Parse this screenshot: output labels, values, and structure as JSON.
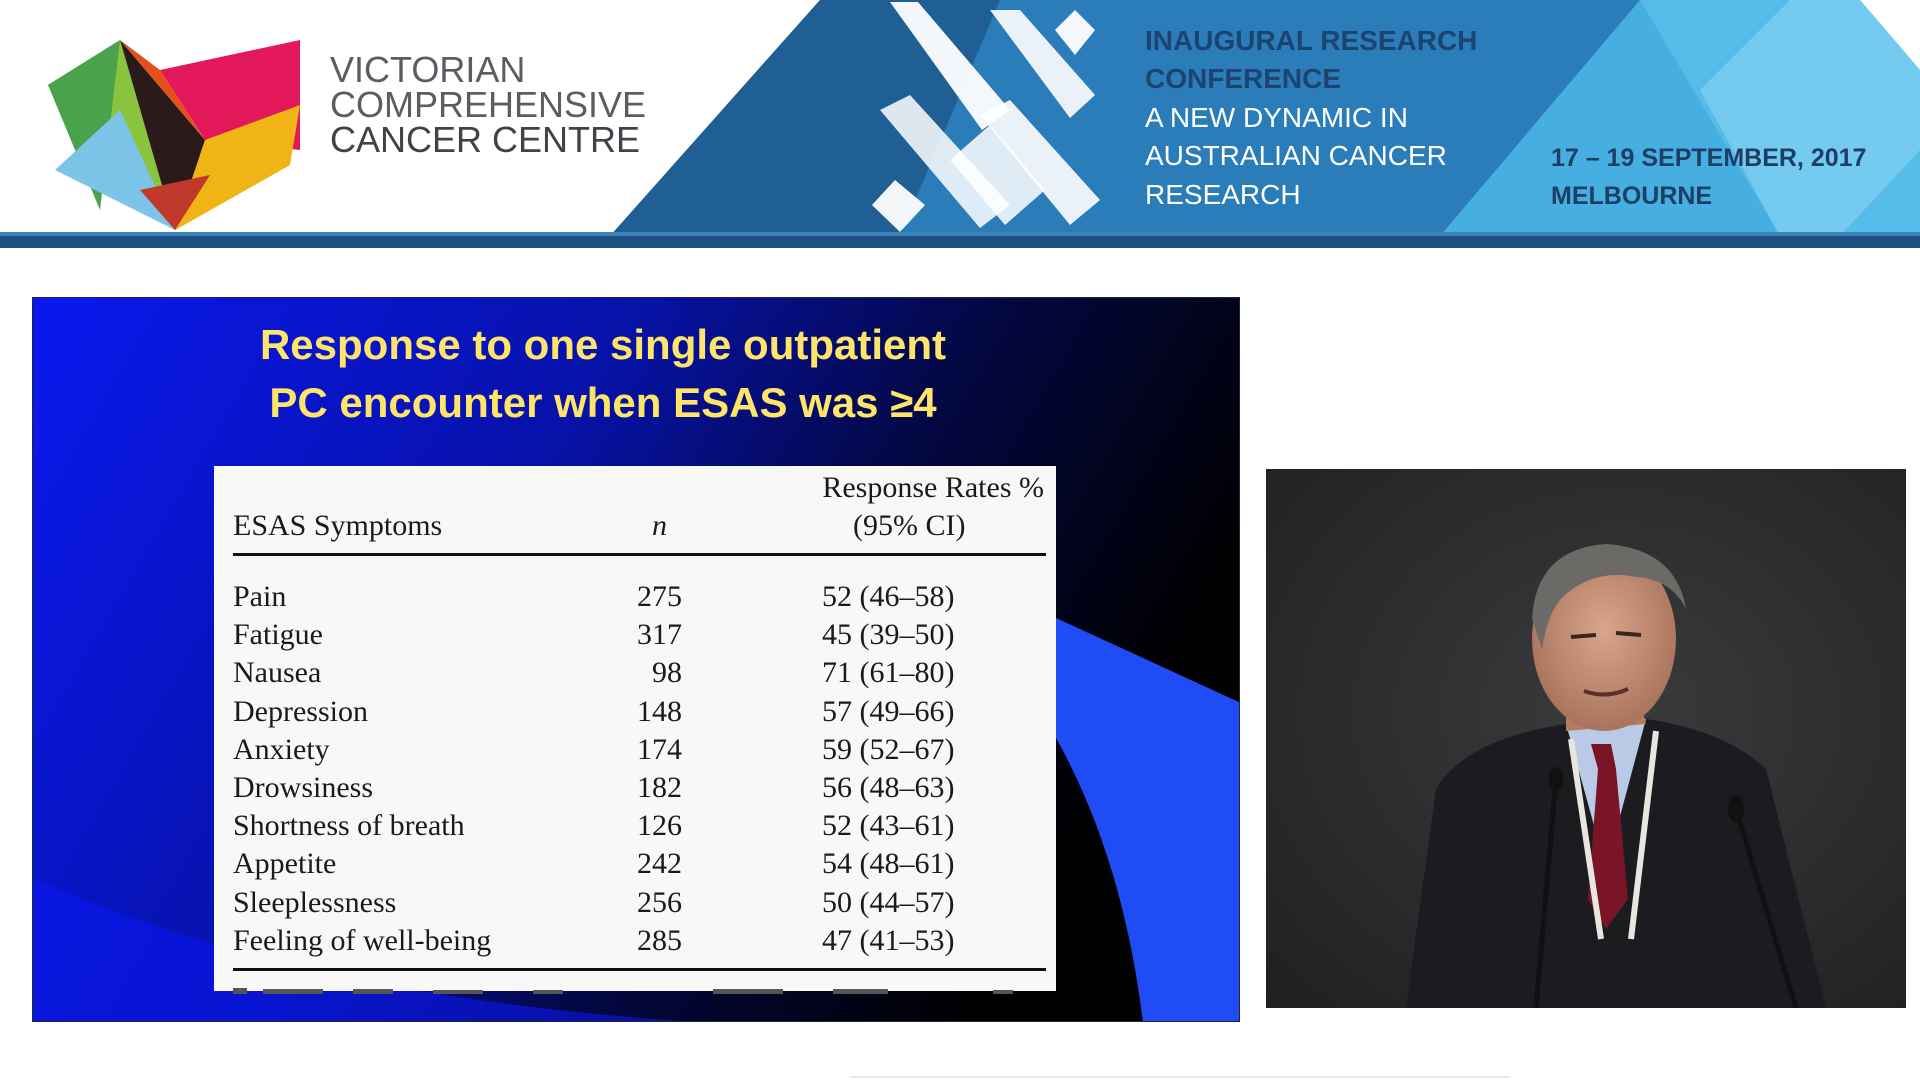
{
  "banner": {
    "logo": {
      "lines": [
        "VICTORIAN",
        "COMPREHENSIVE",
        "CANCER CENTRE"
      ]
    },
    "conference": {
      "lines": [
        "INAUGURAL RESEARCH",
        "CONFERENCE",
        "A NEW DYNAMIC IN",
        "AUSTRALIAN CANCER",
        "RESEARCH"
      ]
    },
    "dates": {
      "lines": [
        "17 – 19 SEPTEMBER, 2017",
        "MELBOURNE"
      ]
    },
    "colors": {
      "navy": "#1d4f82",
      "blue": "#2f84bf",
      "light_blue": "#4fb3e3"
    }
  },
  "slide": {
    "title_lines": [
      "Response to one single outpatient",
      "PC encounter when ESAS  was ≥4"
    ],
    "title_color": "#ffe46a",
    "table": {
      "headers": {
        "symptoms": "ESAS Symptoms",
        "n": "n",
        "rates_line1": "Response Rates %",
        "rates_line2": "(95% CI)"
      },
      "rows": [
        {
          "symptom": "Pain",
          "n": "275",
          "rate": "52 (46–58)"
        },
        {
          "symptom": "Fatigue",
          "n": "317",
          "rate": "45 (39–50)"
        },
        {
          "symptom": "Nausea",
          "n": "98",
          "rate": "71 (61–80)"
        },
        {
          "symptom": "Depression",
          "n": "148",
          "rate": "57 (49–66)"
        },
        {
          "symptom": "Anxiety",
          "n": "174",
          "rate": "59 (52–67)"
        },
        {
          "symptom": "Drowsiness",
          "n": "182",
          "rate": "56 (48–63)"
        },
        {
          "symptom": "Shortness of breath",
          "n": "126",
          "rate": "52 (43–61)"
        },
        {
          "symptom": "Appetite",
          "n": "242",
          "rate": "54 (48–61)"
        },
        {
          "symptom": "Sleeplessness",
          "n": "256",
          "rate": "50 (44–57)"
        },
        {
          "symptom": "Feeling of well-being",
          "n": "285",
          "rate": "47 (41–53)"
        }
      ]
    },
    "cursor_icon": "pointer-arrow-icon"
  },
  "speaker_video": {
    "description_icon": "speaker-figure-icon"
  }
}
